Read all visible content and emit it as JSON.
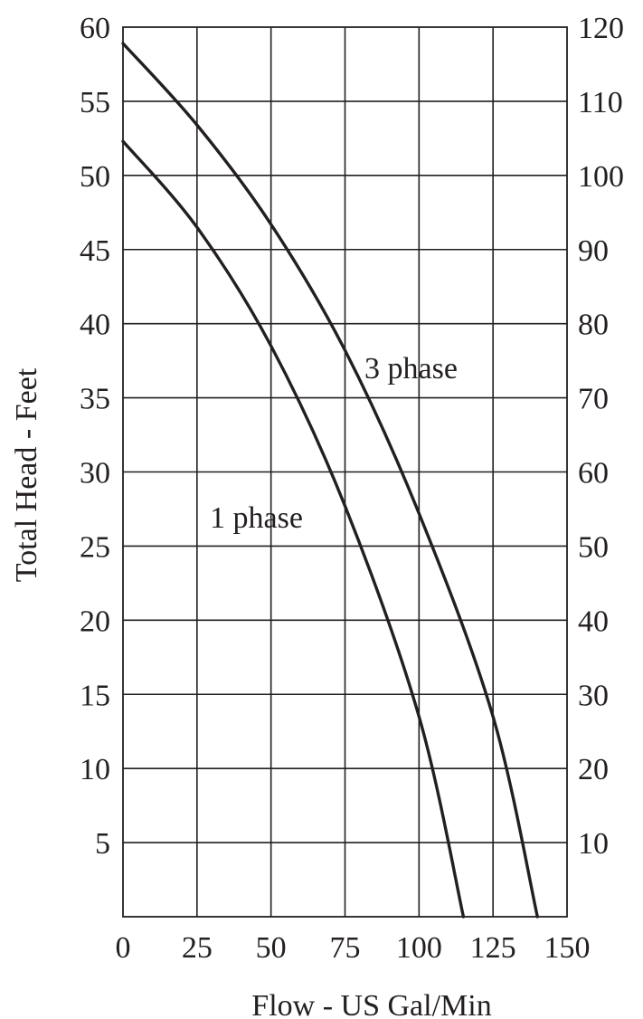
{
  "chart_data": {
    "type": "line",
    "xlabel": "Flow - US Gal/Min",
    "ylabel": "Total Head - Feet",
    "xlim": [
      0,
      150
    ],
    "ylim": [
      0,
      60
    ],
    "y2lim": [
      0,
      120
    ],
    "grid": true,
    "x_ticks": [
      0,
      25,
      50,
      75,
      100,
      125,
      150
    ],
    "y_ticks": [
      5,
      10,
      15,
      20,
      25,
      30,
      35,
      40,
      45,
      50,
      55,
      60
    ],
    "y2_ticks": [
      10,
      20,
      30,
      40,
      50,
      60,
      70,
      80,
      90,
      100,
      110,
      120
    ],
    "x_tick_labels": [
      "0",
      "25",
      "50",
      "75",
      "100",
      "125",
      "150"
    ],
    "y_tick_labels": [
      "5",
      "10",
      "15",
      "20",
      "25",
      "30",
      "35",
      "40",
      "45",
      "50",
      "55",
      "60"
    ],
    "y2_tick_labels": [
      "10",
      "20",
      "30",
      "40",
      "50",
      "60",
      "70",
      "80",
      "90",
      "100",
      "110",
      "120"
    ],
    "series": [
      {
        "name": "1 phase",
        "x": [
          0,
          25,
          50,
          75,
          100,
          115
        ],
        "y": [
          52.3,
          46.5,
          38.5,
          27.7,
          13.5,
          0
        ]
      },
      {
        "name": "3 phase",
        "x": [
          0,
          25,
          50,
          75,
          100,
          125,
          140
        ],
        "y": [
          58.9,
          53.4,
          46.7,
          38.2,
          27.2,
          13.5,
          0
        ]
      }
    ]
  }
}
